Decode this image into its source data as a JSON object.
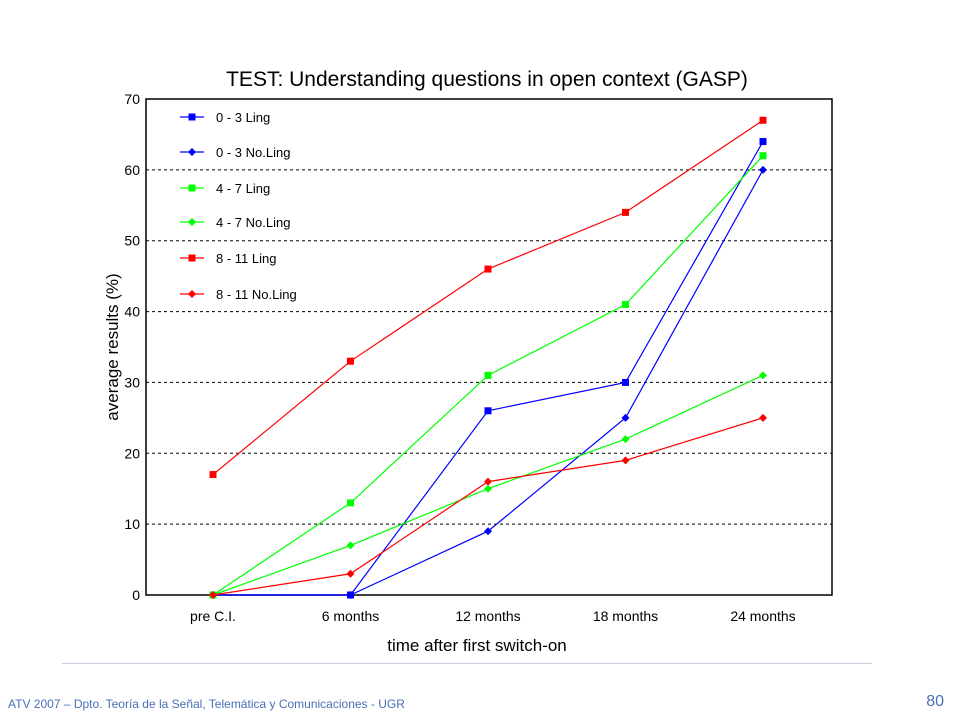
{
  "chart_data": {
    "type": "line",
    "title": "TEST: Understanding questions in open context (GASP)",
    "xlabel": "time after first switch-on",
    "ylabel": "average results (%)",
    "categories": [
      "pre C.I.",
      "6 months",
      "12 months",
      "18 months",
      "24 months"
    ],
    "ylim": [
      0,
      70
    ],
    "yticks": [
      0,
      10,
      20,
      30,
      40,
      50,
      60,
      70
    ],
    "grid": "horizontal dashed",
    "legend_position": "top-left",
    "series": [
      {
        "name": "0 - 3 Ling",
        "color": "#0000ff",
        "marker": "square",
        "values": [
          0,
          0,
          26,
          30,
          64
        ]
      },
      {
        "name": "0 - 3 No.Ling",
        "color": "#0000ff",
        "marker": "diamond",
        "values": [
          0,
          0,
          9,
          25,
          60
        ]
      },
      {
        "name": "4 - 7 Ling",
        "color": "#00ff00",
        "marker": "square",
        "values": [
          0,
          13,
          31,
          41,
          62
        ]
      },
      {
        "name": "4 - 7 No.Ling",
        "color": "#00ff00",
        "marker": "diamond",
        "values": [
          0,
          7,
          15,
          22,
          31
        ]
      },
      {
        "name": "8 - 11 Ling",
        "color": "#ff0000",
        "marker": "square",
        "values": [
          17,
          33,
          46,
          54,
          67
        ]
      },
      {
        "name": "8 - 11 No.Ling",
        "color": "#ff0000",
        "marker": "diamond",
        "values": [
          0,
          3,
          16,
          19,
          25
        ]
      }
    ]
  },
  "footer": {
    "text": "ATV 2007 – Dpto. Teoría de la Señal, Telemática y Comunicaciones - UGR",
    "page_number": "80"
  }
}
